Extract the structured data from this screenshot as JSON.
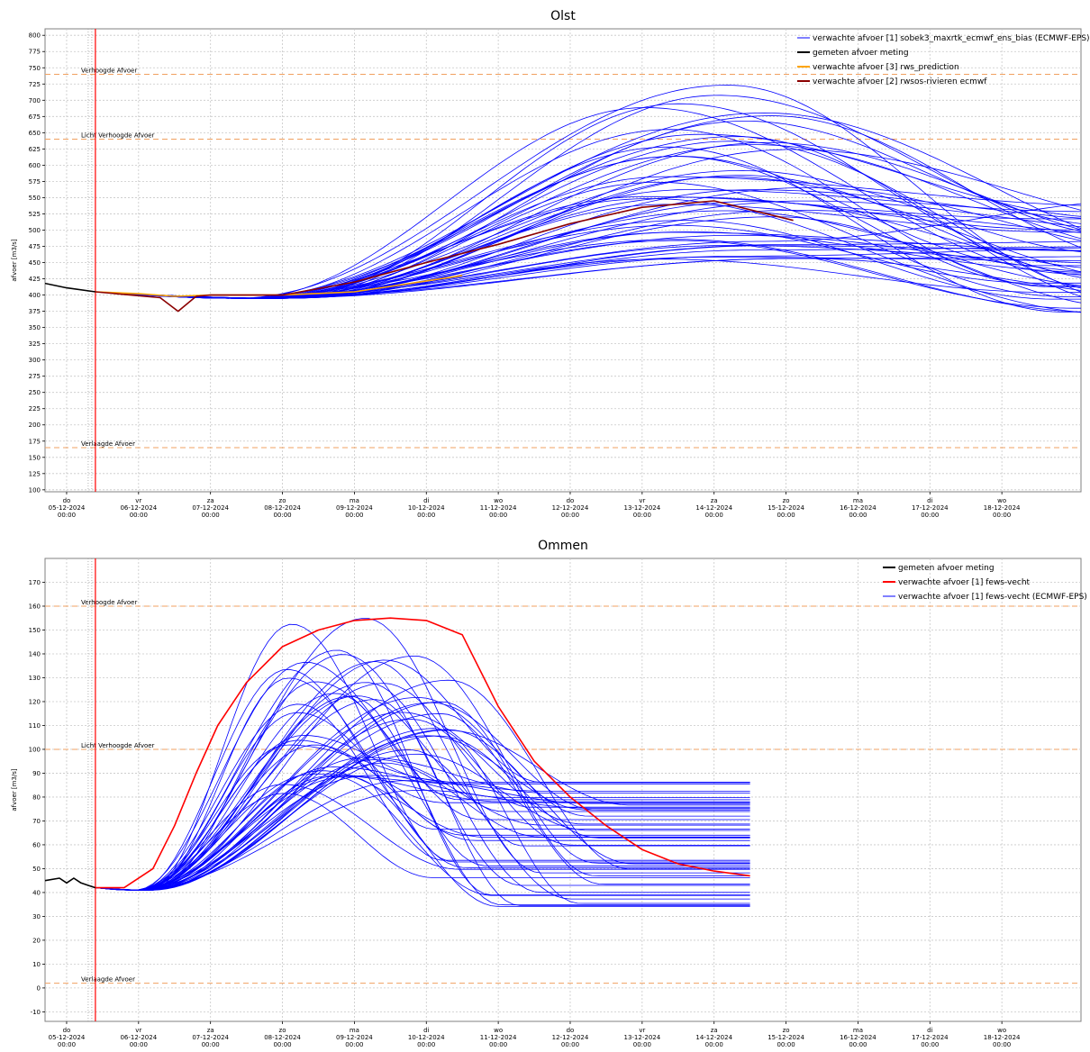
{
  "chart_data": [
    {
      "type": "line",
      "title": "Olst",
      "ylabel": "afvoer [m3/s]",
      "ylim": [
        97,
        810
      ],
      "yticks": [
        100,
        125,
        150,
        175,
        200,
        225,
        250,
        275,
        300,
        325,
        350,
        375,
        400,
        425,
        450,
        475,
        500,
        525,
        550,
        575,
        600,
        625,
        650,
        675,
        700,
        725,
        750,
        775,
        800
      ],
      "xticks": [
        {
          "day": "do",
          "date": "05-12-2024",
          "time": "00:00"
        },
        {
          "day": "vr",
          "date": "06-12-2024",
          "time": "00:00"
        },
        {
          "day": "za",
          "date": "07-12-2024",
          "time": "00:00"
        },
        {
          "day": "zo",
          "date": "08-12-2024",
          "time": "00:00"
        },
        {
          "day": "ma",
          "date": "09-12-2024",
          "time": "00:00"
        },
        {
          "day": "di",
          "date": "10-12-2024",
          "time": "00:00"
        },
        {
          "day": "wo",
          "date": "11-12-2024",
          "time": "00:00"
        },
        {
          "day": "do",
          "date": "12-12-2024",
          "time": "00:00"
        },
        {
          "day": "vr",
          "date": "13-12-2024",
          "time": "00:00"
        },
        {
          "day": "za",
          "date": "14-12-2024",
          "time": "00:00"
        },
        {
          "day": "zo",
          "date": "15-12-2024",
          "time": "00:00"
        },
        {
          "day": "ma",
          "date": "16-12-2024",
          "time": "00:00"
        },
        {
          "day": "di",
          "date": "17-12-2024",
          "time": "00:00"
        },
        {
          "day": "wo",
          "date": "18-12-2024",
          "time": "00:00"
        }
      ],
      "xlim_days": [
        -0.3,
        14.1
      ],
      "now_day": 0.4,
      "thresholds": [
        {
          "label": "Verhoogde Afvoer",
          "value": 740
        },
        {
          "label": "Licht Verhoogde Afvoer",
          "value": 640
        },
        {
          "label": "Verlaagde Afvoer",
          "value": 165
        }
      ],
      "legend": [
        {
          "label": "verwachte afvoer [1] sobek3_maxrtk_ecmwf_ens_bias  (ECMWF-EPS)",
          "color": "#0000ff"
        },
        {
          "label": "gemeten afvoer meting",
          "color": "#000000"
        },
        {
          "label": "verwachte afvoer [3] rws_prediction",
          "color": "#ffa500"
        },
        {
          "label": "verwachte afvoer [2] rwsos-rivieren ecmwf",
          "color": "#8b0000"
        }
      ],
      "series": [
        {
          "kind": "measured",
          "color": "#000000",
          "x": [
            -0.3,
            0,
            0.4
          ],
          "y": [
            418,
            411,
            405
          ]
        },
        {
          "kind": "rws_prediction",
          "color": "#ffa500",
          "x": [
            0.4,
            1,
            1.5,
            2,
            3,
            4,
            5.5
          ],
          "y": [
            405,
            402,
            398,
            400,
            400,
            405,
            430
          ]
        },
        {
          "kind": "rwsos",
          "color": "#8b0000",
          "x": [
            0.4,
            1.3,
            1.55,
            1.8,
            2,
            3,
            4,
            5,
            6,
            7,
            8,
            9,
            10.1
          ],
          "y": [
            405,
            396,
            375,
            398,
            400,
            400,
            420,
            450,
            478,
            510,
            535,
            545,
            515
          ]
        }
      ],
      "ensemble": {
        "color": "#0000ff",
        "count": 51,
        "start_day": 0.4,
        "end_day": 14.1,
        "start_value": 405,
        "dip_value": 395,
        "peak_min": 455,
        "peak_max": 728,
        "end_min": 365,
        "end_max": 610
      }
    },
    {
      "type": "line",
      "title": "Ommen",
      "ylabel": "afvoer [m3/s]",
      "ylim": [
        -14,
        180
      ],
      "yticks": [
        -10,
        0,
        10,
        20,
        30,
        40,
        50,
        60,
        70,
        80,
        90,
        100,
        110,
        120,
        130,
        140,
        150,
        160,
        170
      ],
      "xticks": [
        {
          "day": "do",
          "date": "05-12-2024",
          "time": "00:00"
        },
        {
          "day": "vr",
          "date": "06-12-2024",
          "time": "00:00"
        },
        {
          "day": "za",
          "date": "07-12-2024",
          "time": "00:00"
        },
        {
          "day": "zo",
          "date": "08-12-2024",
          "time": "00:00"
        },
        {
          "day": "ma",
          "date": "09-12-2024",
          "time": "00:00"
        },
        {
          "day": "di",
          "date": "10-12-2024",
          "time": "00:00"
        },
        {
          "day": "wo",
          "date": "11-12-2024",
          "time": "00:00"
        },
        {
          "day": "do",
          "date": "12-12-2024",
          "time": "00:00"
        },
        {
          "day": "vr",
          "date": "13-12-2024",
          "time": "00:00"
        },
        {
          "day": "za",
          "date": "14-12-2024",
          "time": "00:00"
        },
        {
          "day": "zo",
          "date": "15-12-2024",
          "time": "00:00"
        },
        {
          "day": "ma",
          "date": "16-12-2024",
          "time": "00:00"
        },
        {
          "day": "di",
          "date": "17-12-2024",
          "time": "00:00"
        },
        {
          "day": "wo",
          "date": "18-12-2024",
          "time": "00:00"
        }
      ],
      "xlim_days": [
        -0.3,
        14.1
      ],
      "now_day": 0.4,
      "thresholds": [
        {
          "label": "Verhoogde Afvoer",
          "value": 160
        },
        {
          "label": "Licht Verhoogde Afvoer",
          "value": 100
        },
        {
          "label": "Verlaagde Afvoer",
          "value": 2
        }
      ],
      "legend": [
        {
          "label": "gemeten afvoer meting",
          "color": "#000000"
        },
        {
          "label": "verwachte afvoer [1] fews-vecht",
          "color": "#ff0000"
        },
        {
          "label": "verwachte afvoer [1] fews-vecht  (ECMWF-EPS)",
          "color": "#0000ff"
        }
      ],
      "series": [
        {
          "kind": "measured",
          "color": "#000000",
          "x": [
            -0.3,
            -0.1,
            0,
            0.1,
            0.2,
            0.3,
            0.4
          ],
          "y": [
            45,
            46,
            44,
            46,
            44,
            43,
            42
          ]
        },
        {
          "kind": "fews-vecht",
          "color": "#ff0000",
          "x": [
            0.4,
            0.8,
            1.2,
            1.5,
            1.8,
            2.1,
            2.5,
            3,
            3.5,
            4,
            4.5,
            5,
            5.5,
            6,
            6.5,
            7,
            7.5,
            8,
            8.5,
            9,
            9.5
          ],
          "y": [
            42,
            42,
            50,
            68,
            90,
            110,
            128,
            143,
            150,
            154,
            155,
            154,
            148,
            118,
            95,
            80,
            68,
            58,
            52,
            49,
            47
          ]
        }
      ],
      "ensemble": {
        "color": "#0000ff",
        "count": 51,
        "start_day": 0.4,
        "end_day": 9.5,
        "start_value": 42,
        "dip_value": 41,
        "peak_min": 80,
        "peak_max": 158,
        "end_min": 33,
        "end_max": 100
      }
    }
  ]
}
